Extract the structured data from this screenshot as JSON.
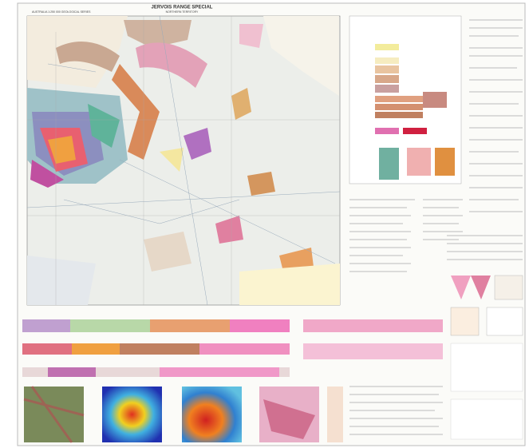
{
  "header": {
    "title": "JERVOIS RANGE SPECIAL",
    "series": "AUSTRALIA 1:250 000 GEOLOGICAL SERIES",
    "territory": "NORTHERN TERRITORY"
  }
}
